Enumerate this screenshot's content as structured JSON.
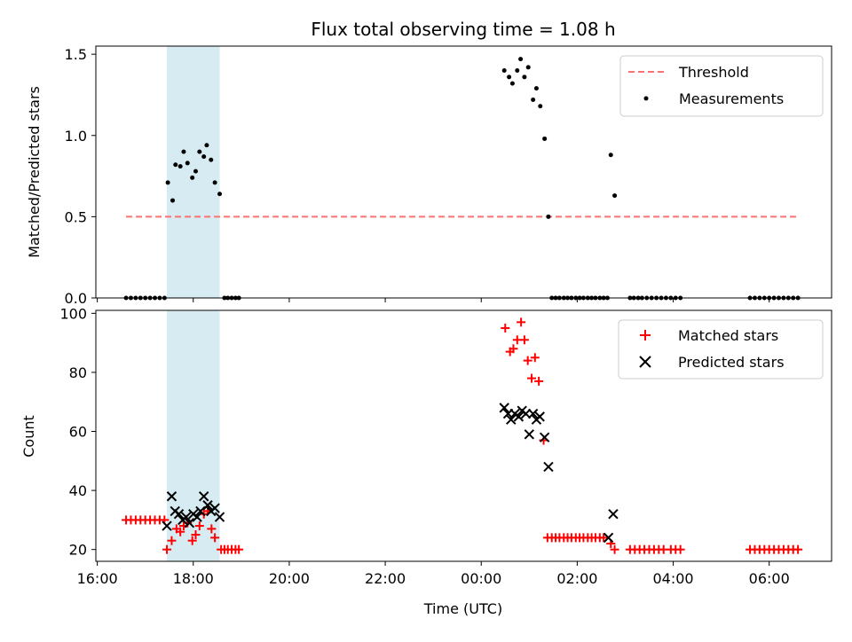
{
  "figure": {
    "title": "Flux total observing time = 1.08 h",
    "xlabel": "Time (UTC)",
    "x_ticks": [
      "16:00",
      "18:00",
      "20:00",
      "22:00",
      "00:00",
      "02:00",
      "04:00",
      "06:00"
    ]
  },
  "chart_data": [
    {
      "type": "scatter",
      "ylabel": "Matched/Predicted stars",
      "ylim": [
        0,
        1.55
      ],
      "xlim_hours": [
        15.97,
        31.3
      ],
      "y_ticks": [
        "0.0",
        "0.5",
        "1.0",
        "1.5"
      ],
      "shaded_span_hours": [
        17.45,
        18.55
      ],
      "legend_position": "top-right",
      "threshold": {
        "name": "Threshold",
        "value": 0.5,
        "x_range_hours": [
          16.6,
          30.6
        ],
        "color": "#ff7070"
      },
      "measurements": {
        "name": "Measurements",
        "color": "#000000",
        "points": [
          [
            16.6,
            0
          ],
          [
            16.7,
            0
          ],
          [
            16.8,
            0
          ],
          [
            16.9,
            0
          ],
          [
            17.0,
            0
          ],
          [
            17.1,
            0
          ],
          [
            17.2,
            0
          ],
          [
            17.3,
            0
          ],
          [
            17.4,
            0
          ],
          [
            17.47,
            0.71
          ],
          [
            17.57,
            0.6
          ],
          [
            17.63,
            0.82
          ],
          [
            17.73,
            0.81
          ],
          [
            17.8,
            0.9
          ],
          [
            17.88,
            0.83
          ],
          [
            17.98,
            0.74
          ],
          [
            18.05,
            0.78
          ],
          [
            18.13,
            0.9
          ],
          [
            18.22,
            0.87
          ],
          [
            18.28,
            0.94
          ],
          [
            18.37,
            0.85
          ],
          [
            18.45,
            0.71
          ],
          [
            18.55,
            0.64
          ],
          [
            18.65,
            0
          ],
          [
            18.72,
            0
          ],
          [
            18.8,
            0
          ],
          [
            18.88,
            0
          ],
          [
            18.95,
            0
          ],
          [
            24.48,
            1.4
          ],
          [
            24.58,
            1.36
          ],
          [
            24.65,
            1.32
          ],
          [
            24.75,
            1.4
          ],
          [
            24.82,
            1.47
          ],
          [
            24.9,
            1.36
          ],
          [
            24.98,
            1.42
          ],
          [
            25.08,
            1.22
          ],
          [
            25.15,
            1.29
          ],
          [
            25.23,
            1.18
          ],
          [
            25.32,
            0.98
          ],
          [
            25.4,
            0.5
          ],
          [
            25.47,
            0
          ],
          [
            25.55,
            0
          ],
          [
            25.63,
            0
          ],
          [
            25.72,
            0
          ],
          [
            25.8,
            0
          ],
          [
            25.88,
            0
          ],
          [
            25.97,
            0
          ],
          [
            26.05,
            0
          ],
          [
            26.13,
            0
          ],
          [
            26.22,
            0
          ],
          [
            26.3,
            0
          ],
          [
            26.38,
            0
          ],
          [
            26.47,
            0
          ],
          [
            26.55,
            0
          ],
          [
            26.63,
            0
          ],
          [
            26.7,
            0.88
          ],
          [
            26.78,
            0.63
          ],
          [
            27.1,
            0
          ],
          [
            27.18,
            0
          ],
          [
            27.27,
            0
          ],
          [
            27.35,
            0
          ],
          [
            27.45,
            0
          ],
          [
            27.55,
            0
          ],
          [
            27.65,
            0
          ],
          [
            27.75,
            0
          ],
          [
            27.85,
            0
          ],
          [
            27.95,
            0
          ],
          [
            28.05,
            0
          ],
          [
            28.15,
            0
          ],
          [
            29.6,
            0
          ],
          [
            29.7,
            0
          ],
          [
            29.8,
            0
          ],
          [
            29.9,
            0
          ],
          [
            30.0,
            0
          ],
          [
            30.1,
            0
          ],
          [
            30.2,
            0
          ],
          [
            30.3,
            0
          ],
          [
            30.4,
            0
          ],
          [
            30.5,
            0
          ],
          [
            30.6,
            0
          ]
        ]
      }
    },
    {
      "type": "scatter",
      "ylabel": "Count",
      "ylim": [
        16,
        101
      ],
      "xlim_hours": [
        15.97,
        31.3
      ],
      "y_ticks": [
        "20",
        "40",
        "60",
        "80",
        "100"
      ],
      "shaded_span_hours": [
        17.45,
        18.55
      ],
      "legend_position": "top-right",
      "series": [
        {
          "name": "Matched stars",
          "marker": "plus",
          "color": "#ff0000",
          "points": [
            [
              16.6,
              30
            ],
            [
              16.7,
              30
            ],
            [
              16.8,
              30
            ],
            [
              16.9,
              30
            ],
            [
              17.0,
              30
            ],
            [
              17.1,
              30
            ],
            [
              17.2,
              30
            ],
            [
              17.3,
              30
            ],
            [
              17.4,
              30
            ],
            [
              17.45,
              20
            ],
            [
              17.55,
              23
            ],
            [
              17.65,
              27
            ],
            [
              17.73,
              26
            ],
            [
              17.8,
              28
            ],
            [
              17.88,
              29
            ],
            [
              17.98,
              23
            ],
            [
              18.05,
              25
            ],
            [
              18.13,
              28
            ],
            [
              18.22,
              32
            ],
            [
              18.3,
              33
            ],
            [
              18.38,
              27
            ],
            [
              18.45,
              24
            ],
            [
              18.58,
              20
            ],
            [
              18.65,
              20
            ],
            [
              18.72,
              20
            ],
            [
              18.8,
              20
            ],
            [
              18.88,
              20
            ],
            [
              18.95,
              20
            ],
            [
              24.5,
              95
            ],
            [
              24.6,
              87
            ],
            [
              24.67,
              88
            ],
            [
              24.75,
              91
            ],
            [
              24.83,
              97
            ],
            [
              24.9,
              91
            ],
            [
              24.97,
              84
            ],
            [
              25.05,
              78
            ],
            [
              25.12,
              85
            ],
            [
              25.2,
              77
            ],
            [
              25.3,
              57
            ],
            [
              25.38,
              24
            ],
            [
              25.47,
              24
            ],
            [
              25.55,
              24
            ],
            [
              25.63,
              24
            ],
            [
              25.72,
              24
            ],
            [
              25.8,
              24
            ],
            [
              25.88,
              24
            ],
            [
              25.97,
              24
            ],
            [
              26.05,
              24
            ],
            [
              26.13,
              24
            ],
            [
              26.22,
              24
            ],
            [
              26.3,
              24
            ],
            [
              26.38,
              24
            ],
            [
              26.47,
              24
            ],
            [
              26.55,
              24
            ],
            [
              26.7,
              22
            ],
            [
              26.78,
              20
            ],
            [
              27.1,
              20
            ],
            [
              27.2,
              20
            ],
            [
              27.3,
              20
            ],
            [
              27.4,
              20
            ],
            [
              27.5,
              20
            ],
            [
              27.6,
              20
            ],
            [
              27.7,
              20
            ],
            [
              27.8,
              20
            ],
            [
              27.95,
              20
            ],
            [
              28.05,
              20
            ],
            [
              28.15,
              20
            ],
            [
              29.6,
              20
            ],
            [
              29.7,
              20
            ],
            [
              29.8,
              20
            ],
            [
              29.9,
              20
            ],
            [
              30.0,
              20
            ],
            [
              30.1,
              20
            ],
            [
              30.2,
              20
            ],
            [
              30.3,
              20
            ],
            [
              30.4,
              20
            ],
            [
              30.5,
              20
            ],
            [
              30.6,
              20
            ]
          ]
        },
        {
          "name": "Predicted stars",
          "marker": "x",
          "color": "#000000",
          "points": [
            [
              17.45,
              28
            ],
            [
              17.55,
              38
            ],
            [
              17.62,
              33
            ],
            [
              17.7,
              32
            ],
            [
              17.78,
              30
            ],
            [
              17.85,
              31
            ],
            [
              17.92,
              29
            ],
            [
              18.0,
              32
            ],
            [
              18.08,
              31
            ],
            [
              18.15,
              33
            ],
            [
              18.22,
              38
            ],
            [
              18.3,
              35
            ],
            [
              18.37,
              33
            ],
            [
              18.45,
              34
            ],
            [
              18.55,
              31
            ],
            [
              24.48,
              68
            ],
            [
              24.56,
              66
            ],
            [
              24.62,
              64
            ],
            [
              24.7,
              66
            ],
            [
              24.78,
              65
            ],
            [
              24.85,
              67
            ],
            [
              24.93,
              66
            ],
            [
              25.0,
              59
            ],
            [
              25.08,
              66
            ],
            [
              25.15,
              64
            ],
            [
              25.22,
              65
            ],
            [
              25.32,
              58
            ],
            [
              25.4,
              48
            ],
            [
              26.65,
              24
            ],
            [
              26.75,
              32
            ]
          ]
        }
      ]
    }
  ]
}
